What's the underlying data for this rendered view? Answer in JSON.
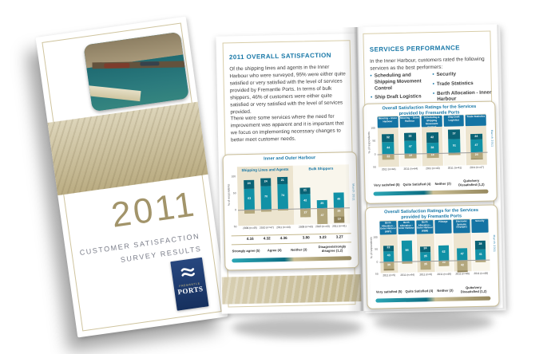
{
  "cover": {
    "year": "2011",
    "title_line1": "CUSTOMER SATISFACTION",
    "title_line2": "SURVEY RESULTS",
    "logo": {
      "brand_top": "FREMANTLE",
      "brand_bottom": "PORTS"
    }
  },
  "left_page": {
    "heading": "2011 OVERALL SATISFACTION",
    "para1": "Of the shipping lines and agents in the Inner Harbour who were surveyed, 95% were either quite satisfied or very satisfied with the level of services provided by Fremantle Ports. In terms of bulk shippers, 46% of customers were either quite satisfied or very satisfied with the level of services provided.",
    "para2": "There were some services where the need for improvement was apparent and it is important that we focus on implementing necessary changes to better meet customer needs."
  },
  "right_page": {
    "heading": "SERVICES PERFORMANCE",
    "intro": "In the Inner Harbour, customers rated the following services as the best performers:",
    "bullets_col1": [
      "Scheduling and Shipping Movement Control",
      "Ship Draft Logistics"
    ],
    "bullets_col2": [
      "Security",
      "Trade Statistics",
      "Berth Allocation - Inner Harbour"
    ]
  },
  "colors": {
    "heading_blue": "#1777a7",
    "chart_blue": "#1474a4",
    "strong_teal": "#0a6375",
    "agree_teal": "#1191a6",
    "neither_tan": "#b3a77d",
    "disagree_tan": "#8f8258",
    "gold": "#a2946a",
    "navy": "#1e3a6e"
  },
  "chart_data": [
    {
      "type": "bar",
      "variant": "diverging-stacked-percent",
      "title": "Inner and Outer Harbour",
      "ylabel": "% of respondents",
      "yticks": [
        "100",
        "50",
        "0",
        "50"
      ],
      "side_note": "March 2011",
      "legend": [
        "Strongly agree (5)",
        "Agree (4)",
        "Neither (3)",
        "Disagree/strongly disagree (1,2)"
      ],
      "groups": [
        {
          "label": "Shipping Lines and Agents",
          "bars": [
            {
              "x": "2009 (n=45)",
              "mean": "4.16",
              "pos": [
                {
                  "k": "agree",
                  "v": 63
                },
                {
                  "k": "strong",
                  "v": 24
                }
              ],
              "neg": [
                {
                  "k": "neither",
                  "v": 11
                }
              ]
            },
            {
              "x": "2010 (n=47)",
              "mean": "4.32",
              "pos": [
                {
                  "k": "agree",
                  "v": 70
                },
                {
                  "k": "strong",
                  "v": 24
                }
              ],
              "neg": [
                {
                  "k": "neither",
                  "v": 6
                }
              ]
            },
            {
              "x": "2011 (n=44)",
              "mean": "4.36",
              "pos": [
                {
                  "k": "agree",
                  "v": 74
                },
                {
                  "k": "strong",
                  "v": 21
                }
              ],
              "neg": [
                {
                  "k": "neither",
                  "v": 5
                }
              ]
            }
          ]
        },
        {
          "label": "Bulk Shippers",
          "bars": [
            {
              "x": "2009 (n=43)",
              "mean": "3.80",
              "pos": [
                {
                  "k": "agree",
                  "v": 42
                },
                {
                  "k": "strong",
                  "v": 21
                }
              ],
              "neg": [
                {
                  "k": "neither",
                  "v": 27
                }
              ]
            },
            {
              "x": "2010 (n=43)",
              "mean": "3.23",
              "pos": [
                {
                  "k": "agree",
                  "v": 25
                }
              ],
              "neg": [
                {
                  "k": "neither",
                  "v": 47
                }
              ]
            },
            {
              "x": "2011 (n=41)",
              "mean": "3.27",
              "pos": [
                {
                  "k": "agree",
                  "v": 46
                }
              ],
              "neg": [
                {
                  "k": "neither",
                  "v": 26
                },
                {
                  "k": "disagree",
                  "v": 19
                }
              ]
            }
          ]
        }
      ]
    },
    {
      "type": "bar",
      "variant": "diverging-stacked-percent",
      "title": "Overall Satisfaction Ratings for the Services provided by Fremantle Ports",
      "ylabel": "% of respondents",
      "yticks": [
        "100",
        "50",
        "0",
        "50"
      ],
      "side_note": "March 2011",
      "legend": [
        "Very satisfied (5)",
        "Quite Satisfied (4)",
        "Neither (3)",
        "Quite/very Dissatisfied (1,2)"
      ],
      "columns": [
        {
          "header": "Mooring – Inner Harbour",
          "x": "2011 (n=44)",
          "pos": [
            {
              "k": "agree",
              "v": 44
            },
            {
              "k": "strong",
              "v": 32
            }
          ],
          "neg": [
            {
              "k": "neither",
              "v": 22
            }
          ]
        },
        {
          "header": "Mooring – Outer Harbour",
          "x": "2011 (n=44)",
          "pos": [
            {
              "k": "agree",
              "v": 47
            },
            {
              "k": "strong",
              "v": 32
            }
          ],
          "neg": [
            {
              "k": "neither",
              "v": 19
            }
          ]
        },
        {
          "header": "Scheduling & Shipping Movement Control",
          "x": "2011 (n=43)",
          "pos": [
            {
              "k": "agree",
              "v": 38
            },
            {
              "k": "strong",
              "v": 42
            }
          ],
          "neg": [
            {
              "k": "neither",
              "v": 18
            }
          ]
        },
        {
          "header": "Ship Draft Logistics",
          "x": "2011 (n=41)",
          "pos": [
            {
              "k": "agree",
              "v": 51
            },
            {
              "k": "strong",
              "v": 37
            }
          ],
          "neg": [
            {
              "k": "neither",
              "v": 10
            }
          ]
        },
        {
          "header": "Trade Statistics",
          "x": "2011 (n=47)",
          "pos": [
            {
              "k": "agree",
              "v": 47
            },
            {
              "k": "strong",
              "v": 24
            }
          ],
          "neg": [
            {
              "k": "neither",
              "v": 24
            },
            {
              "k": "disagree",
              "v": 4
            }
          ]
        }
      ]
    },
    {
      "type": "bar",
      "variant": "diverging-stacked-percent",
      "title": "Overall Satisfaction Ratings for the Services provided by Fremantle Ports",
      "ylabel": "% of respondents",
      "yticks": [
        "100",
        "50",
        "0",
        "50"
      ],
      "side_note": "March 2011",
      "legend": [
        "Very satisfied (5)",
        "Quite Satisfied (4)",
        "Neither (3)",
        "Quite/very Dissatisfied (1,2)"
      ],
      "columns": [
        {
          "header": "Berth Allocation – Outer Harbour (KBT)",
          "x": "2011 (n=5)",
          "pos": [
            {
              "k": "agree",
              "v": 43
            },
            {
              "k": "strong",
              "v": 22
            }
          ],
          "neg": [
            {
              "k": "neither",
              "v": 30
            },
            {
              "k": "disagree",
              "v": 4
            }
          ]
        },
        {
          "header": "Berth Allocation – Inner Harbour",
          "x": "2011 (n=44)",
          "pos": [
            {
              "k": "agree",
              "v": 84
            }
          ],
          "neg": [
            {
              "k": "neither",
              "v": 11
            }
          ]
        },
        {
          "header": "Berth Allocation – Outer Harbour (KBB)",
          "x": "2011 (n=6)",
          "pos": [
            {
              "k": "agree",
              "v": 35
            },
            {
              "k": "strong",
              "v": 24
            }
          ],
          "neg": [
            {
              "k": "neither",
              "v": 35
            }
          ]
        },
        {
          "header": "Pilotage",
          "x": "2011 (n=46)",
          "pos": [
            {
              "k": "agree",
              "v": 62
            }
          ],
          "neg": [
            {
              "k": "neither",
              "v": 22
            }
          ]
        },
        {
          "header": "Electronic Systems (Voyager)",
          "x": "2011 (n=45)",
          "pos": [
            {
              "k": "agree",
              "v": 47
            }
          ],
          "neg": [
            {
              "k": "neither",
              "v": 42
            },
            {
              "k": "disagree",
              "v": 5
            }
          ]
        },
        {
          "header": "Security",
          "x": "2011 (n=48)",
          "pos": [
            {
              "k": "agree",
              "v": 41
            },
            {
              "k": "strong",
              "v": 38
            }
          ],
          "neg": [
            {
              "k": "neither",
              "v": 9
            }
          ]
        }
      ]
    }
  ]
}
